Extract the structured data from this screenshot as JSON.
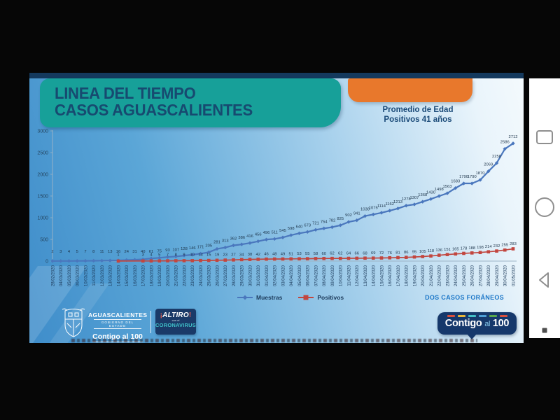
{
  "slide": {
    "title_line1": "LINEA DEL TIEMPO",
    "title_line2": "CASOS AGUASCALIENTES",
    "promedio_line1": "Promedio de Edad",
    "promedio_line2": "Positivos 41 años",
    "note": "DOS CASOS FORÁNEOS",
    "footer": {
      "gov_name": "AGUASCALIENTES",
      "gov_sub": "GOBIERNO DEL ESTADO",
      "gov_slogan": "Contigo al 100",
      "campaign_top": "ALTIRO",
      "campaign_mid": "con el",
      "campaign_bottom": "CORONAVIRUS",
      "bubble_part1": "Contigo",
      "bubble_part2": "al",
      "bubble_part3": "100"
    }
  },
  "chart_data": {
    "type": "line",
    "title": "LINEA DEL TIEMPO CASOS AGUASCALIENTES",
    "xlabel": "",
    "ylabel": "",
    "ylim": [
      0,
      3000
    ],
    "yticks": [
      0,
      500,
      1000,
      1500,
      2000,
      2500,
      3000
    ],
    "grid": false,
    "data_labels": true,
    "legend_position": "bottom",
    "x": [
      "28/02/2020",
      "04/03/2020",
      "05/03/2020",
      "06/03/2020",
      "10/03/2020",
      "11/03/2020",
      "12/03/2020",
      "13/03/2020",
      "14/03/2020",
      "15/03/2020",
      "16/03/2020",
      "17/03/2020",
      "18/03/2020",
      "19/03/2020",
      "20/03/2020",
      "21/03/2020",
      "22/03/2020",
      "23/03/2020",
      "24/03/2020",
      "25/03/2020",
      "26/03/2020",
      "27/03/2020",
      "28/03/2020",
      "29/03/2020",
      "30/03/2020",
      "31/03/2020",
      "01/04/2020",
      "02/04/2020",
      "03/04/2020",
      "04/04/2020",
      "05/04/2020",
      "06/04/2020",
      "07/04/2020",
      "08/04/2020",
      "09/04/2020",
      "10/04/2020",
      "11/04/2020",
      "12/04/2020",
      "13/04/2020",
      "14/04/2020",
      "15/04/2020",
      "16/04/2020",
      "17/04/2020",
      "18/04/2020",
      "19/04/2020",
      "20/04/2020",
      "21/04/2020",
      "22/04/2020",
      "23/04/2020",
      "24/04/2020",
      "25/04/2020",
      "26/04/2020",
      "27/04/2020",
      "28/04/2020",
      "29/04/2020",
      "30/04/2020",
      "01/05/2020"
    ],
    "series": [
      {
        "name": "Muestras",
        "color": "#4a77bd",
        "marker": "diamond",
        "values": [
          2,
          3,
          4,
          5,
          7,
          8,
          11,
          13,
          16,
          24,
          31,
          40,
          61,
          75,
          93,
          107,
          128,
          146,
          171,
          205,
          281,
          313,
          362,
          386,
          416,
          456,
          496,
          511,
          545,
          598,
          640,
          673,
          721,
          754,
          782,
          825,
          902,
          941,
          1038,
          1075,
          1114,
          1162,
          1213,
          1278,
          1307,
          1368,
          1430,
          1498,
          1563,
          1683,
          1790,
          1790,
          1870,
          2069,
          2258,
          2586,
          2712
        ]
      },
      {
        "name": "Positivos",
        "color": "#c2463f",
        "marker": "square",
        "values": [
          null,
          null,
          null,
          null,
          null,
          null,
          null,
          null,
          1,
          null,
          null,
          3,
          4,
          5,
          7,
          8,
          9,
          10,
          13,
          15,
          19,
          23,
          27,
          34,
          38,
          42,
          46,
          48,
          49,
          51,
          53,
          55,
          58,
          60,
          62,
          62,
          64,
          66,
          68,
          69,
          72,
          76,
          81,
          86,
          95,
          105,
          118,
          136,
          151,
          165,
          178,
          188,
          198,
          214,
          232,
          255,
          283
        ]
      }
    ]
  },
  "colors": {
    "teal_header": "#17a099",
    "orange_shape": "#e8782c",
    "navy_strip": "#14395d",
    "note_blue": "#1e78c8",
    "coronavirus_teal": "#3fc1c9",
    "bubble_navy": "#16386b",
    "bubble_dashes": [
      "#d94f3d",
      "#e8b73a",
      "#43bfc7",
      "#4d9fd6",
      "#59a84c",
      "#d94f3d"
    ]
  },
  "nav": {
    "icons": [
      "recents-square-icon",
      "home-circle-icon",
      "back-triangle-icon",
      "menu-dot-icon"
    ]
  }
}
